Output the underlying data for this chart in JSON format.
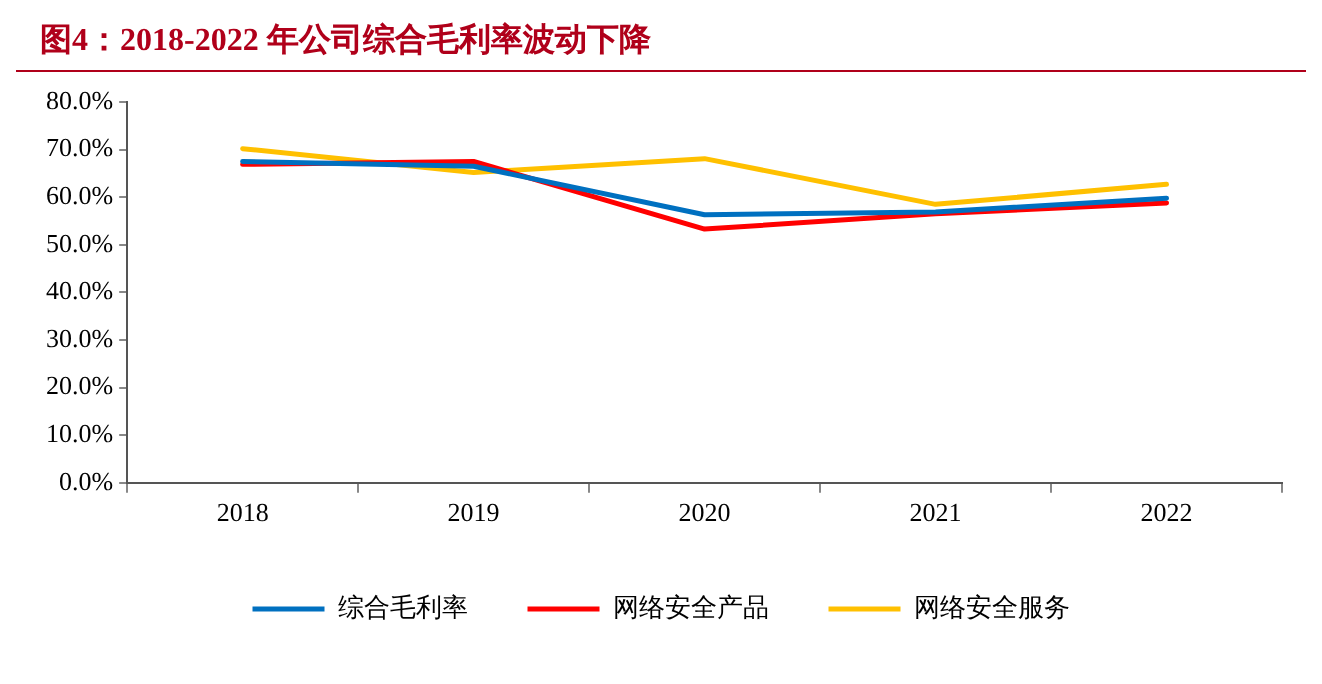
{
  "chart_data": {
    "type": "line",
    "title": "图4：2018-2022 年公司综合毛利率波动下降",
    "categories": [
      "2018",
      "2019",
      "2020",
      "2021",
      "2022"
    ],
    "series": [
      {
        "name": "综合毛利率",
        "color": "#0070c0",
        "values": [
          67.5,
          66.5,
          56.3,
          56.9,
          59.8
        ]
      },
      {
        "name": "网络安全产品",
        "color": "#ff0000",
        "values": [
          66.9,
          67.5,
          53.3,
          56.5,
          58.8
        ]
      },
      {
        "name": "网络安全服务",
        "color": "#ffc000",
        "values": [
          70.2,
          65.2,
          68.1,
          58.5,
          62.7
        ]
      }
    ],
    "ylim": [
      0,
      80
    ],
    "yticks": [
      {
        "value": 0,
        "label": "0.0%"
      },
      {
        "value": 10,
        "label": "10.0%"
      },
      {
        "value": 20,
        "label": "20.0%"
      },
      {
        "value": 30,
        "label": "30.0%"
      },
      {
        "value": 40,
        "label": "40.0%"
      },
      {
        "value": 50,
        "label": "50.0%"
      },
      {
        "value": 60,
        "label": "60.0%"
      },
      {
        "value": 70,
        "label": "70.0%"
      },
      {
        "value": 80,
        "label": "80.0%"
      }
    ],
    "grid": false,
    "legend": "bottom",
    "marker": "none",
    "line_style": "solid"
  }
}
